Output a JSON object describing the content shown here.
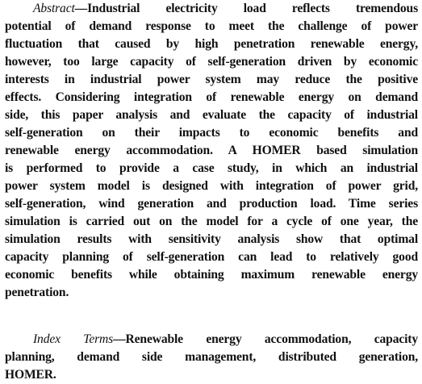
{
  "abstract": {
    "label": "Abstract",
    "lines": [
      "—Industrial electricity load reflects tremendous",
      "potential of demand response to meet the challenge of power",
      "fluctuation that caused by high penetration renewable energy,",
      "however, too large capacity of self-generation driven by economic",
      "interests in industrial power system may reduce the positive",
      "effects. Considering integration of renewable energy on demand",
      "side, this paper analysis and evaluate the capacity of industrial",
      "self-generation on their impacts to economic benefits and",
      "renewable energy accommodation. A HOMER based simulation",
      "is performed to provide a case study, in which an industrial",
      "power system model is designed with integration of power grid,",
      "self-generation, wind generation and production load. Time series",
      "simulation is carried out on the model for a cycle of one year, the",
      "simulation results with sensitivity analysis show that optimal",
      "capacity planning of self-generation can lead to relatively good",
      "economic benefits while obtaining maximum renewable energy",
      "penetration."
    ]
  },
  "index_terms": {
    "label": "Index Terms",
    "lines": [
      "—Renewable energy accommodation, capacity",
      "planning, demand side management, distributed generation,",
      "HOMER."
    ]
  }
}
